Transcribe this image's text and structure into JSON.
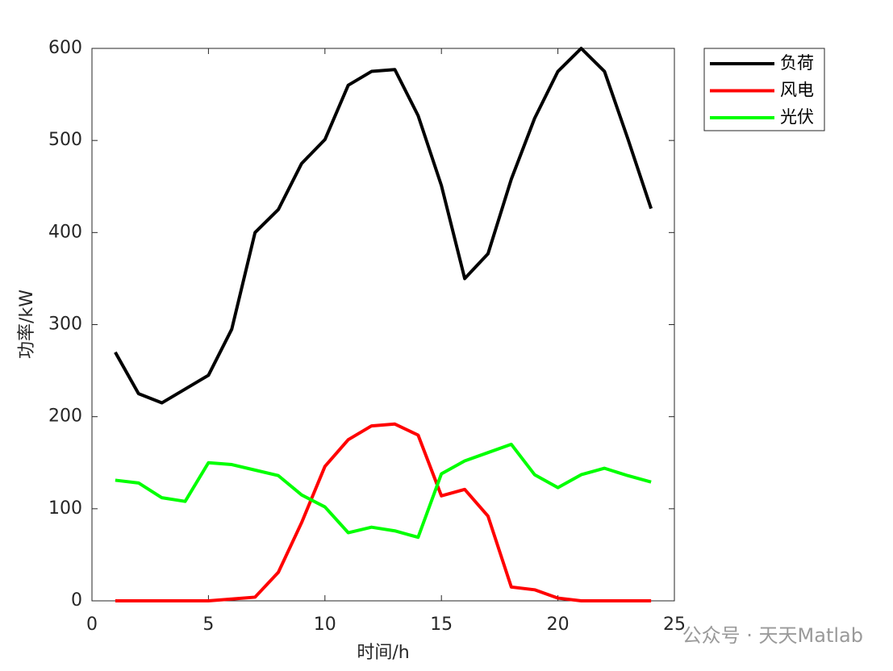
{
  "chart_data": {
    "type": "line",
    "xlabel": "时间/h",
    "ylabel": "功率/kW",
    "x": [
      1,
      2,
      3,
      4,
      5,
      6,
      7,
      8,
      9,
      10,
      11,
      12,
      13,
      14,
      15,
      16,
      17,
      18,
      19,
      20,
      21,
      22,
      23,
      24
    ],
    "series": [
      {
        "name": "负荷",
        "color": "#000000",
        "values": [
          270,
          225,
          215,
          230,
          245,
          295,
          400,
          425,
          475,
          501,
          560,
          575,
          577,
          527,
          451,
          350,
          377,
          458,
          524,
          575,
          600,
          575,
          502,
          426
        ]
      },
      {
        "name": "风电",
        "color": "#ff0000",
        "values": [
          0,
          0,
          0,
          0,
          0,
          2,
          4,
          31,
          85,
          146,
          175,
          190,
          192,
          180,
          114,
          121,
          92,
          15,
          12,
          3,
          0,
          0,
          0,
          0
        ]
      },
      {
        "name": "光伏",
        "color": "#00ff00",
        "values": [
          131,
          128,
          112,
          108,
          150,
          148,
          142,
          136,
          115,
          102,
          74,
          80,
          76,
          69,
          138,
          152,
          161,
          170,
          137,
          123,
          137,
          144,
          136,
          129
        ]
      }
    ],
    "xlim": [
      0,
      25
    ],
    "xticks": [
      0,
      5,
      10,
      15,
      20,
      25
    ],
    "ylim": [
      0,
      600
    ],
    "yticks": [
      0,
      100,
      200,
      300,
      400,
      500,
      600
    ],
    "legend": "outside-upper-right",
    "watermark": "公众号 · 天天Matlab"
  }
}
